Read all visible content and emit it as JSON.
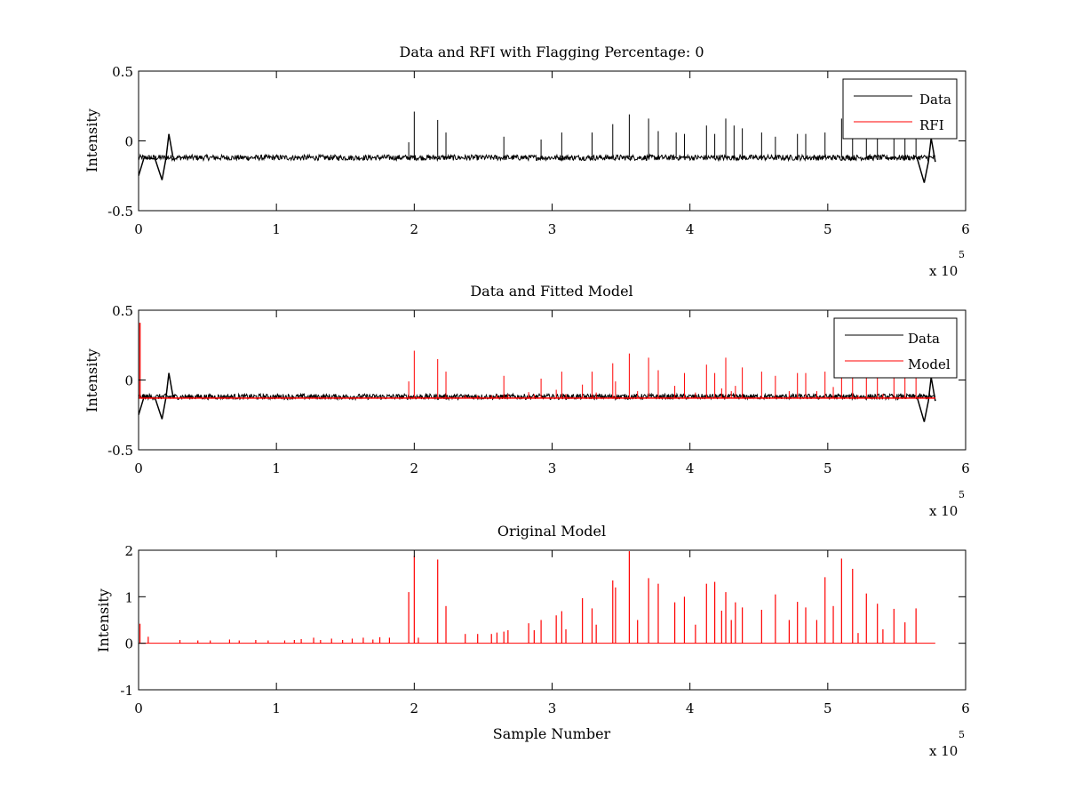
{
  "colors": {
    "data": "#000000",
    "rfi": "#ff0000",
    "model": "#ff0000",
    "background": "#ffffff"
  },
  "chart_data": [
    {
      "type": "line",
      "title": "Data and RFI with Flagging Percentage: 0",
      "xlabel": "",
      "ylabel": "Intensity",
      "xlim": [
        0,
        600000
      ],
      "ylim": [
        -0.5,
        0.5
      ],
      "xticks": [
        0,
        1,
        2,
        3,
        4,
        5,
        6
      ],
      "yticks": [
        -0.5,
        0,
        0.5
      ],
      "x_multiplier_label": "x 10",
      "x_multiplier_exponent": "5",
      "legend": {
        "placement": "top-right",
        "entries": [
          "Data",
          "RFI"
        ]
      },
      "grid": false,
      "series": [
        {
          "name": "Data",
          "color": "#000000",
          "baseline": -0.12,
          "noise": 0.02,
          "spike_x": [
            196000,
            200000,
            217000,
            223000,
            265000,
            292000,
            307000,
            329000,
            344000,
            356000,
            370000,
            377000,
            390000,
            396000,
            412000,
            418000,
            426000,
            432000,
            438000,
            452000,
            462000,
            478000,
            484000,
            498000,
            510000,
            518000,
            528000,
            536000,
            548000,
            556000,
            564000
          ],
          "spike_y": [
            -0.01,
            0.21,
            0.15,
            0.06,
            0.03,
            0.01,
            0.06,
            0.06,
            0.12,
            0.19,
            0.16,
            0.07,
            0.06,
            0.05,
            0.11,
            0.05,
            0.16,
            0.11,
            0.09,
            0.06,
            0.03,
            0.05,
            0.05,
            0.06,
            0.16,
            0.05,
            0.05,
            0.06,
            0.06,
            0.03,
            0.04
          ],
          "edge_dips": [
            {
              "x": 17000,
              "y": -0.28
            },
            {
              "x": 22000,
              "y": 0.05
            },
            {
              "x": 570000,
              "y": -0.3
            },
            {
              "x": 575000,
              "y": 0.02
            }
          ]
        },
        {
          "name": "RFI",
          "color": "#ff0000",
          "x": [],
          "y": []
        }
      ]
    },
    {
      "type": "line",
      "title": "Data and Fitted Model",
      "xlabel": "",
      "ylabel": "Intensity",
      "xlim": [
        0,
        600000
      ],
      "ylim": [
        -0.5,
        0.5
      ],
      "xticks": [
        0,
        1,
        2,
        3,
        4,
        5,
        6
      ],
      "yticks": [
        -0.5,
        0,
        0.5
      ],
      "x_multiplier_label": "x 10",
      "x_multiplier_exponent": "5",
      "legend": {
        "placement": "top-right",
        "entries": [
          "Data",
          "Model"
        ]
      },
      "grid": false,
      "series": [
        {
          "name": "Data",
          "color": "#000000",
          "baseline": -0.12,
          "noise": 0.02
        },
        {
          "name": "Model",
          "color": "#ff0000",
          "baseline": -0.13,
          "start_spike": {
            "x": 1000,
            "y": 0.41
          }
        }
      ]
    },
    {
      "type": "line",
      "title": "Original Model",
      "xlabel": "Sample Number",
      "ylabel": "Intensity",
      "xlim": [
        0,
        600000
      ],
      "ylim": [
        -1,
        2
      ],
      "xticks": [
        0,
        1,
        2,
        3,
        4,
        5,
        6
      ],
      "yticks": [
        -1,
        0,
        1,
        2
      ],
      "x_multiplier_label": "x 10",
      "x_multiplier_exponent": "5",
      "grid": false,
      "series": [
        {
          "name": "Model",
          "color": "#ff0000",
          "baseline": 0,
          "spike_x": [
            1000,
            7000,
            30000,
            43000,
            52000,
            66000,
            73000,
            85000,
            94000,
            106000,
            113000,
            118000,
            127000,
            132000,
            140000,
            148000,
            155000,
            163000,
            170000,
            175000,
            182000,
            196000,
            200000,
            203000,
            217000,
            223000,
            237000,
            246000,
            256000,
            260000,
            265000,
            268000,
            283000,
            287000,
            292000,
            303000,
            307000,
            310000,
            322000,
            329000,
            332000,
            344000,
            346000,
            356000,
            362000,
            370000,
            377000,
            389000,
            396000,
            404000,
            412000,
            418000,
            423000,
            426000,
            430000,
            433000,
            438000,
            452000,
            462000,
            472000,
            478000,
            484000,
            492000,
            498000,
            504000,
            510000,
            518000,
            522000,
            528000,
            536000,
            540000,
            548000,
            556000,
            564000
          ],
          "spike_y": [
            0.42,
            0.14,
            0.07,
            0.06,
            0.06,
            0.08,
            0.06,
            0.07,
            0.06,
            0.06,
            0.07,
            0.09,
            0.12,
            0.07,
            0.1,
            0.07,
            0.1,
            0.12,
            0.08,
            0.13,
            0.12,
            1.1,
            1.88,
            0.12,
            1.8,
            0.8,
            0.2,
            0.2,
            0.2,
            0.23,
            0.25,
            0.28,
            0.43,
            0.28,
            0.5,
            0.6,
            0.69,
            0.3,
            0.97,
            0.75,
            0.4,
            1.35,
            1.2,
            1.98,
            0.5,
            1.4,
            1.28,
            0.88,
            1.0,
            0.4,
            1.28,
            1.32,
            0.7,
            1.1,
            0.5,
            0.88,
            0.77,
            0.72,
            1.05,
            0.5,
            0.89,
            0.77,
            0.5,
            1.42,
            0.8,
            1.82,
            1.6,
            0.22,
            1.07,
            0.85,
            0.3,
            0.74,
            0.45,
            0.75
          ]
        }
      ]
    }
  ]
}
